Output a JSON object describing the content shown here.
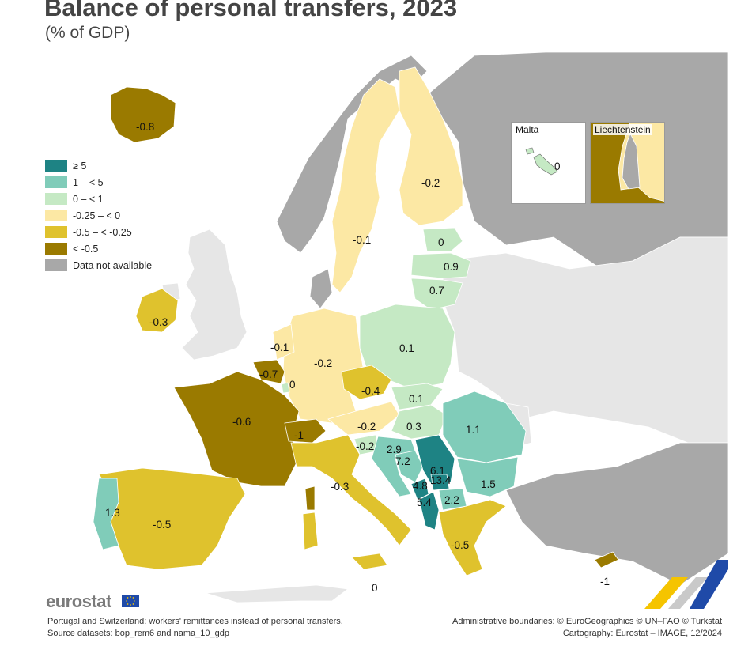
{
  "title": "Balance of personal transfers, 2023",
  "subtitle": "(% of GDP)",
  "colors": {
    "ge5": "#1e8384",
    "1to5": "#80ccb9",
    "0to1": "#c5e9c4",
    "m025to0": "#fce8a4",
    "m05tom025": "#dfc22d",
    "ltm05": "#9a7a00",
    "na": "#a8a8a8",
    "non_eu_land": "#e6e6e6",
    "sea": "#ffffff"
  },
  "legend": [
    {
      "label": "≥ 5",
      "color": "#1e8384"
    },
    {
      "label": "1 – < 5",
      "color": "#80ccb9"
    },
    {
      "label": "0 – < 1",
      "color": "#c5e9c4"
    },
    {
      "label": "-0.25 – < 0",
      "color": "#fce8a4"
    },
    {
      "label": "-0.5 – < -0.25",
      "color": "#dfc22d"
    },
    {
      "label": "< -0.5",
      "color": "#9a7a00"
    },
    {
      "label": "Data not available",
      "color": "#a8a8a8"
    }
  ],
  "values": {
    "iceland": "-0.8",
    "ireland": "-0.3",
    "sweden": "-0.1",
    "finland": "-0.2",
    "estonia": "0",
    "latvia": "0.9",
    "lithuania": "0.7",
    "poland": "0.1",
    "netherlands": "-0.1",
    "belgium": "-0.7",
    "luxembourg": "0",
    "germany": "-0.2",
    "czechia": "-0.4",
    "slovakia": "0.1",
    "hungary": "0.3",
    "austria": "-0.2",
    "slovenia": "-0.2",
    "croatia": "2.9",
    "bosnia": "7.2",
    "serbia": "6.1",
    "montenegro": "4.8",
    "kosovo": "13.4",
    "albania": "5.4",
    "north_macedonia": "2.2",
    "romania": "1.1",
    "bulgaria": "1.5",
    "france": "-0.6",
    "switzerland": "-1",
    "italy": "-0.3",
    "portugal": "1.3",
    "spain": "-0.5",
    "greece": "-0.5",
    "malta": "0",
    "cyprus": "-1",
    "malta_sea_label": "0"
  },
  "insets": {
    "malta": {
      "title": "Malta",
      "value": "0"
    },
    "liechtenstein": {
      "title": "Liechtenstein"
    }
  },
  "footer": {
    "note_line1": "Portugal and Switzerland: workers' remittances instead of personal transfers.",
    "note_line2": "Source datasets: bop_rem6 and nama_10_gdp",
    "credit_line1": "Administrative boundaries: © EuroGeographics © UN–FAO © Turkstat",
    "credit_line2": "Cartography: Eurostat – IMAGE, 12/2024"
  },
  "logo": {
    "text": "eurostat"
  }
}
